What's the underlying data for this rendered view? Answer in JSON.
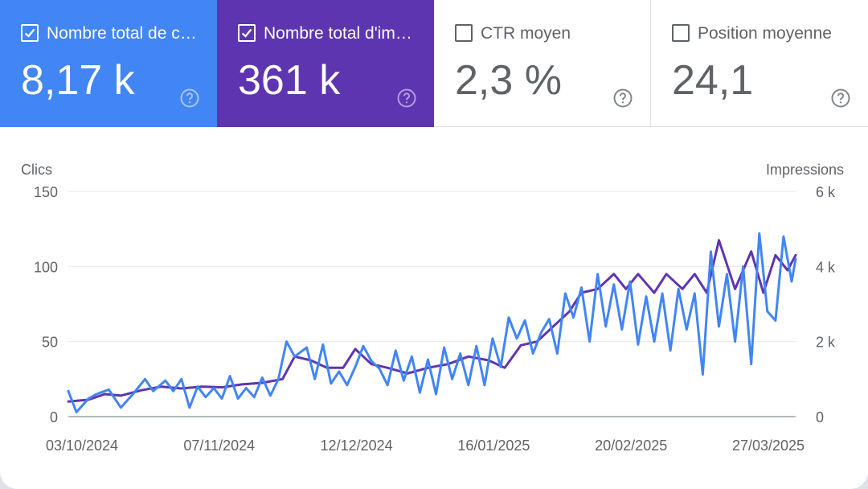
{
  "metrics": [
    {
      "key": "clicks",
      "label": "Nombre total de clics",
      "value": "8,17 k",
      "checked": true,
      "color": "#4285f4"
    },
    {
      "key": "impressions",
      "label": "Nombre total d'impressions",
      "value": "361 k",
      "checked": true,
      "color": "#5e35b1"
    },
    {
      "key": "ctr",
      "label": "CTR moyen",
      "value": "2,3 %",
      "checked": false
    },
    {
      "key": "position",
      "label": "Position moyenne",
      "value": "24,1",
      "checked": false
    }
  ],
  "icons": {
    "checkbox": "checkbox-icon",
    "help": "help-circle-icon"
  },
  "chart_data": {
    "type": "line",
    "left_axis": {
      "label": "Clics",
      "ticks": [
        "150",
        "100",
        "50",
        "0"
      ],
      "range": [
        0,
        150
      ]
    },
    "right_axis": {
      "label": "Impressions",
      "ticks": [
        "6 k",
        "4 k",
        "2 k",
        "0"
      ],
      "range": [
        0,
        6000
      ]
    },
    "x_ticks": [
      "03/10/2024",
      "07/11/2024",
      "12/12/2024",
      "16/01/2025",
      "20/02/2025",
      "27/03/2025"
    ],
    "x_range": [
      "2024-10-03",
      "2025-04-01"
    ],
    "grid": true,
    "series": [
      {
        "axis": "left",
        "color": "#4285f4",
        "points": [
          [
            "2024-10-03",
            17
          ],
          [
            "2024-10-05",
            3
          ],
          [
            "2024-10-08",
            12
          ],
          [
            "2024-10-10",
            15
          ],
          [
            "2024-10-13",
            18
          ],
          [
            "2024-10-16",
            6
          ],
          [
            "2024-10-19",
            15
          ],
          [
            "2024-10-22",
            25
          ],
          [
            "2024-10-24",
            17
          ],
          [
            "2024-10-27",
            24
          ],
          [
            "2024-10-29",
            17
          ],
          [
            "2024-10-31",
            25
          ],
          [
            "2024-11-02",
            6
          ],
          [
            "2024-11-04",
            20
          ],
          [
            "2024-11-06",
            13
          ],
          [
            "2024-11-08",
            19
          ],
          [
            "2024-11-10",
            12
          ],
          [
            "2024-11-12",
            27
          ],
          [
            "2024-11-14",
            12
          ],
          [
            "2024-11-16",
            19
          ],
          [
            "2024-11-18",
            13
          ],
          [
            "2024-11-20",
            26
          ],
          [
            "2024-11-22",
            14
          ],
          [
            "2024-11-24",
            25
          ],
          [
            "2024-11-26",
            50
          ],
          [
            "2024-11-28",
            40
          ],
          [
            "2024-12-01",
            46
          ],
          [
            "2024-12-03",
            25
          ],
          [
            "2024-12-05",
            48
          ],
          [
            "2024-12-07",
            22
          ],
          [
            "2024-12-09",
            30
          ],
          [
            "2024-12-11",
            21
          ],
          [
            "2024-12-13",
            33
          ],
          [
            "2024-12-15",
            47
          ],
          [
            "2024-12-17",
            37
          ],
          [
            "2024-12-19",
            32
          ],
          [
            "2024-12-21",
            21
          ],
          [
            "2024-12-23",
            44
          ],
          [
            "2024-12-25",
            24
          ],
          [
            "2024-12-27",
            40
          ],
          [
            "2024-12-29",
            16
          ],
          [
            "2024-12-31",
            38
          ],
          [
            "2025-01-02",
            15
          ],
          [
            "2025-01-04",
            46
          ],
          [
            "2025-01-06",
            25
          ],
          [
            "2025-01-08",
            42
          ],
          [
            "2025-01-10",
            21
          ],
          [
            "2025-01-12",
            47
          ],
          [
            "2025-01-14",
            21
          ],
          [
            "2025-01-16",
            52
          ],
          [
            "2025-01-18",
            33
          ],
          [
            "2025-01-20",
            66
          ],
          [
            "2025-01-22",
            52
          ],
          [
            "2025-01-24",
            64
          ],
          [
            "2025-01-26",
            42
          ],
          [
            "2025-01-28",
            56
          ],
          [
            "2025-01-30",
            65
          ],
          [
            "2025-02-01",
            42
          ],
          [
            "2025-02-03",
            82
          ],
          [
            "2025-02-05",
            66
          ],
          [
            "2025-02-07",
            86
          ],
          [
            "2025-02-09",
            50
          ],
          [
            "2025-02-11",
            95
          ],
          [
            "2025-02-13",
            60
          ],
          [
            "2025-02-15",
            88
          ],
          [
            "2025-02-17",
            58
          ],
          [
            "2025-02-19",
            90
          ],
          [
            "2025-02-21",
            48
          ],
          [
            "2025-02-23",
            80
          ],
          [
            "2025-02-25",
            50
          ],
          [
            "2025-02-27",
            82
          ],
          [
            "2025-03-01",
            44
          ],
          [
            "2025-03-03",
            85
          ],
          [
            "2025-03-05",
            58
          ],
          [
            "2025-03-07",
            82
          ],
          [
            "2025-03-09",
            28
          ],
          [
            "2025-03-11",
            110
          ],
          [
            "2025-03-13",
            60
          ],
          [
            "2025-03-15",
            95
          ],
          [
            "2025-03-17",
            50
          ],
          [
            "2025-03-19",
            100
          ],
          [
            "2025-03-21",
            35
          ],
          [
            "2025-03-23",
            122
          ],
          [
            "2025-03-25",
            70
          ],
          [
            "2025-03-27",
            64
          ],
          [
            "2025-03-29",
            120
          ],
          [
            "2025-03-31",
            90
          ],
          [
            "2025-04-01",
            105
          ]
        ]
      },
      {
        "axis": "right",
        "color": "#5e35b1",
        "points": [
          [
            "2024-10-03",
            400
          ],
          [
            "2024-10-08",
            450
          ],
          [
            "2024-10-12",
            600
          ],
          [
            "2024-10-16",
            560
          ],
          [
            "2024-10-21",
            700
          ],
          [
            "2024-10-26",
            800
          ],
          [
            "2024-10-31",
            750
          ],
          [
            "2024-11-05",
            800
          ],
          [
            "2024-11-10",
            780
          ],
          [
            "2024-11-15",
            860
          ],
          [
            "2024-11-20",
            900
          ],
          [
            "2024-11-25",
            1000
          ],
          [
            "2024-11-28",
            1600
          ],
          [
            "2024-12-02",
            1500
          ],
          [
            "2024-12-06",
            1300
          ],
          [
            "2024-12-10",
            1300
          ],
          [
            "2024-12-13",
            1800
          ],
          [
            "2024-12-17",
            1400
          ],
          [
            "2024-12-21",
            1300
          ],
          [
            "2024-12-26",
            1150
          ],
          [
            "2024-12-31",
            1300
          ],
          [
            "2025-01-05",
            1400
          ],
          [
            "2025-01-10",
            1600
          ],
          [
            "2025-01-15",
            1500
          ],
          [
            "2025-01-19",
            1300
          ],
          [
            "2025-01-23",
            1900
          ],
          [
            "2025-01-27",
            2000
          ],
          [
            "2025-01-31",
            2400
          ],
          [
            "2025-02-04",
            2800
          ],
          [
            "2025-02-07",
            3300
          ],
          [
            "2025-02-11",
            3400
          ],
          [
            "2025-02-15",
            3800
          ],
          [
            "2025-02-18",
            3400
          ],
          [
            "2025-02-21",
            3800
          ],
          [
            "2025-02-25",
            3300
          ],
          [
            "2025-02-28",
            3800
          ],
          [
            "2025-03-04",
            3400
          ],
          [
            "2025-03-07",
            3800
          ],
          [
            "2025-03-10",
            3300
          ],
          [
            "2025-03-13",
            4700
          ],
          [
            "2025-03-17",
            3400
          ],
          [
            "2025-03-21",
            4400
          ],
          [
            "2025-03-24",
            3300
          ],
          [
            "2025-03-27",
            4300
          ],
          [
            "2025-03-30",
            3900
          ],
          [
            "2025-04-01",
            4300
          ]
        ]
      }
    ]
  }
}
